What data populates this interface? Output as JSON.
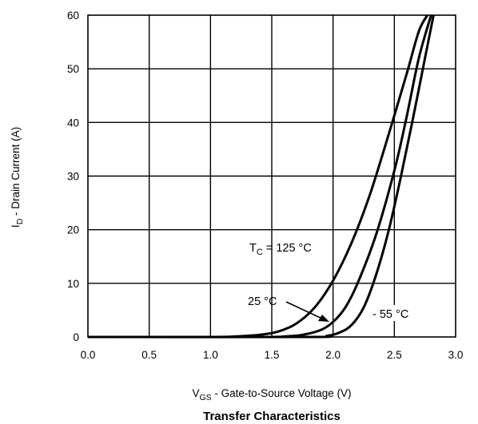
{
  "chart_data": {
    "type": "line",
    "title": "Transfer Characteristics",
    "xlabel": {
      "main": "V",
      "sub": "GS",
      "rest": " - Gate-to-Source Voltage (V)"
    },
    "ylabel": {
      "main": "I",
      "sub": "D",
      "rest": " - Drain Current (A)"
    },
    "xlim": [
      0.0,
      3.0
    ],
    "ylim": [
      0,
      60
    ],
    "grid": true,
    "xticks": [
      "0.0",
      "0.5",
      "1.0",
      "1.5",
      "2.0",
      "2.5",
      "3.0"
    ],
    "yticks": [
      "0",
      "10",
      "20",
      "30",
      "40",
      "50",
      "60"
    ],
    "series": [
      {
        "name": "T_C = 125 °C",
        "x": [
          1.0,
          1.2,
          1.4,
          1.55,
          1.7,
          1.85,
          2.0,
          2.15,
          2.3,
          2.45,
          2.6,
          2.7,
          2.77
        ],
        "y": [
          0,
          0.1,
          0.4,
          1.0,
          2.5,
          5.5,
          10.5,
          17.5,
          26.5,
          37.5,
          49,
          57,
          60
        ]
      },
      {
        "name": "25 °C",
        "x": [
          1.4,
          1.6,
          1.75,
          1.9,
          2.0,
          2.1,
          2.2,
          2.35,
          2.5,
          2.6,
          2.7,
          2.8
        ],
        "y": [
          0,
          0.1,
          0.4,
          1.3,
          2.8,
          5.5,
          10,
          19,
          31,
          41,
          52,
          60
        ]
      },
      {
        "name": "- 55 °C",
        "x": [
          1.8,
          1.95,
          2.05,
          2.15,
          2.25,
          2.35,
          2.45,
          2.55,
          2.65,
          2.75,
          2.82
        ],
        "y": [
          0,
          0.2,
          0.8,
          2.2,
          5.5,
          11.5,
          19.5,
          29.5,
          40.5,
          52,
          60
        ]
      }
    ],
    "annotations": {
      "tc_main": "T",
      "tc_sub": "C",
      "tc_rest": " = 125 °C",
      "mid": "25 °C",
      "low": "- 55 °C"
    }
  }
}
